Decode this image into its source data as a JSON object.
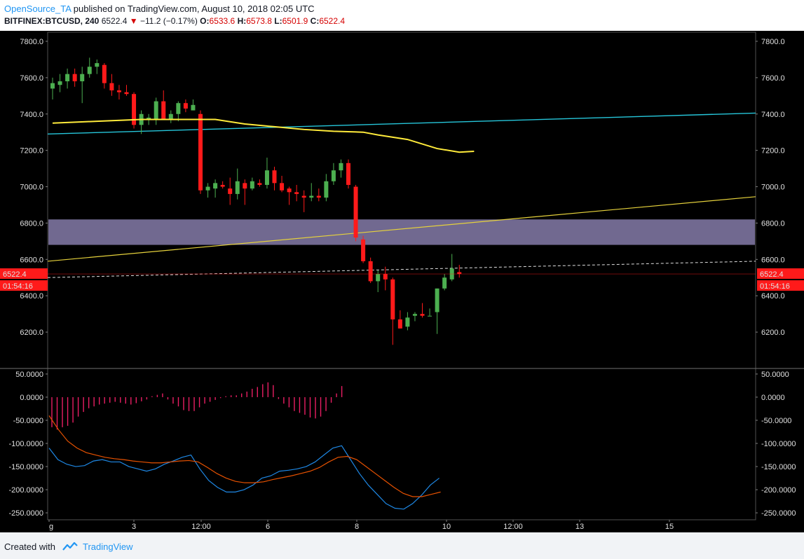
{
  "header": {
    "author": "OpenSource_TA",
    "published_text": "published on TradingView.com, August 10, 2018 02:05 UTC",
    "symbol": "BITFINEX:BTCUSD, 240",
    "last": "6522.4",
    "change": "−11.2 (−0.17%)",
    "open_label": "O:",
    "open": "6533.6",
    "high_label": "H:",
    "high": "6573.8",
    "low_label": "L:",
    "low": "6501.9",
    "close_label": "C:",
    "close": "6522.4"
  },
  "footer": {
    "created_with": "Created with",
    "brand": "TradingView"
  },
  "colors": {
    "up": "#4caf50",
    "down": "#ff1a1a",
    "ma": "#ffeb3b",
    "trend_cyan": "#26c6da",
    "trend_yellow": "#e6d23c",
    "zone": "#8a80b0",
    "macd_line": "#1e88e5",
    "signal_line": "#e65100",
    "hist": "#e91e63"
  },
  "chart_data": [
    {
      "type": "candlestick",
      "ylim": [
        6000,
        7850
      ],
      "y_ticks": [
        "6200.0",
        "6400.0",
        "6600.0",
        "6800.0",
        "7000.0",
        "7200.0",
        "7400.0",
        "7600.0",
        "7800.0"
      ],
      "x_ticks": [
        "g",
        "3",
        "12:00",
        "6",
        "8",
        "10",
        "12:00",
        "13",
        "15"
      ],
      "price_label": "6522.4",
      "countdown_label": "01:54:16",
      "resistance_zone": [
        6680,
        6820
      ],
      "candles": [
        [
          7540,
          7600,
          7480,
          7570
        ],
        [
          7560,
          7620,
          7520,
          7580
        ],
        [
          7580,
          7650,
          7540,
          7620
        ],
        [
          7620,
          7650,
          7550,
          7580
        ],
        [
          7580,
          7660,
          7460,
          7620
        ],
        [
          7620,
          7710,
          7600,
          7660
        ],
        [
          7660,
          7700,
          7620,
          7680
        ],
        [
          7670,
          7680,
          7540,
          7570
        ],
        [
          7570,
          7620,
          7500,
          7530
        ],
        [
          7530,
          7560,
          7480,
          7520
        ],
        [
          7520,
          7560,
          7500,
          7510
        ],
        [
          7510,
          7520,
          7320,
          7340
        ],
        [
          7340,
          7420,
          7290,
          7400
        ],
        [
          7370,
          7400,
          7340,
          7380
        ],
        [
          7370,
          7490,
          7340,
          7470
        ],
        [
          7470,
          7530,
          7380,
          7370
        ],
        [
          7370,
          7420,
          7350,
          7400
        ],
        [
          7400,
          7470,
          7360,
          7460
        ],
        [
          7460,
          7480,
          7410,
          7430
        ],
        [
          7420,
          7480,
          7420,
          7450
        ],
        [
          7400,
          7420,
          6960,
          6980
        ],
        [
          6980,
          7020,
          6940,
          7000
        ],
        [
          6990,
          7040,
          6940,
          7020
        ],
        [
          7010,
          7030,
          6990,
          7000
        ],
        [
          6990,
          7050,
          6900,
          6960
        ],
        [
          6960,
          7100,
          6930,
          7030
        ],
        [
          7020,
          7040,
          6900,
          6990
        ],
        [
          6990,
          7050,
          6980,
          7030
        ],
        [
          7020,
          7040,
          7000,
          7010
        ],
        [
          7010,
          7160,
          6990,
          7090
        ],
        [
          7090,
          7110,
          6980,
          7020
        ],
        [
          7020,
          7060,
          6970,
          6980
        ],
        [
          6990,
          7000,
          6900,
          6970
        ],
        [
          6970,
          7010,
          6920,
          6960
        ],
        [
          6950,
          6980,
          6860,
          6940
        ],
        [
          6940,
          7020,
          6920,
          6950
        ],
        [
          6950,
          6990,
          6920,
          6940
        ],
        [
          6940,
          7070,
          6920,
          7030
        ],
        [
          7030,
          7130,
          7010,
          7090
        ],
        [
          7090,
          7150,
          7050,
          7130
        ],
        [
          7130,
          7150,
          6990,
          7010
        ],
        [
          7000,
          7010,
          6700,
          6720
        ],
        [
          6710,
          6730,
          6580,
          6590
        ],
        [
          6590,
          6610,
          6470,
          6480
        ],
        [
          6480,
          6540,
          6420,
          6520
        ],
        [
          6520,
          6560,
          6430,
          6490
        ],
        [
          6490,
          6500,
          6130,
          6270
        ],
        [
          6270,
          6320,
          6220,
          6220
        ],
        [
          6230,
          6310,
          6210,
          6280
        ],
        [
          6290,
          6310,
          6260,
          6300
        ],
        [
          6300,
          6360,
          6280,
          6290
        ],
        [
          6290,
          6330,
          6290,
          6290
        ],
        [
          6310,
          6440,
          6190,
          6440
        ],
        [
          6440,
          6520,
          6430,
          6500
        ],
        [
          6490,
          6630,
          6480,
          6550
        ],
        [
          6530,
          6570,
          6500,
          6520
        ]
      ],
      "ma_line": [
        [
          0,
          7350
        ],
        [
          6,
          7360
        ],
        [
          12,
          7370
        ],
        [
          18,
          7370
        ],
        [
          22,
          7370
        ],
        [
          26,
          7345
        ],
        [
          30,
          7330
        ],
        [
          34,
          7315
        ],
        [
          38,
          7305
        ],
        [
          42,
          7300
        ],
        [
          44,
          7285
        ],
        [
          48,
          7260
        ],
        [
          52,
          7210
        ],
        [
          55,
          7190
        ],
        [
          57,
          7195
        ]
      ],
      "trend_cyan": [
        [
          0,
          7290
        ],
        [
          100,
          7405
        ]
      ],
      "trend_yellow": [
        [
          0,
          6590
        ],
        [
          100,
          6945
        ]
      ],
      "trend_dashed": [
        [
          0,
          6500
        ],
        [
          100,
          6590
        ]
      ]
    },
    {
      "type": "macd",
      "ylim": [
        -265,
        62
      ],
      "y_ticks": [
        "50.0000",
        "0.0000",
        "-50.0000",
        "-100.0000",
        "-150.0000",
        "-200.0000",
        "-250.0000"
      ],
      "histogram": [
        -65,
        -70,
        -65,
        -62,
        -55,
        -42,
        -32,
        -24,
        -20,
        -16,
        -14,
        -12,
        -10,
        -12,
        -14,
        -16,
        -13,
        -9,
        -5,
        2,
        5,
        8,
        -5,
        -14,
        -20,
        -28,
        -30,
        -30,
        -22,
        -14,
        -10,
        -6,
        -2,
        2,
        4,
        4,
        8,
        12,
        18,
        22,
        28,
        32,
        26,
        -4,
        -14,
        -22,
        -30,
        -34,
        -38,
        -44,
        -46,
        -42,
        -30,
        -12,
        8,
        24
      ],
      "macd_line": [
        -110,
        -135,
        -145,
        -150,
        -148,
        -138,
        -135,
        -140,
        -140,
        -150,
        -155,
        -160,
        -155,
        -145,
        -138,
        -130,
        -125,
        -155,
        -180,
        -195,
        -205,
        -205,
        -200,
        -190,
        -175,
        -170,
        -160,
        -158,
        -155,
        -150,
        -140,
        -125,
        -110,
        -105,
        -135,
        -165,
        -190,
        -210,
        -230,
        -240,
        -242,
        -230,
        -212,
        -190,
        -175
      ],
      "signal_line": [
        -40,
        -70,
        -95,
        -110,
        -120,
        -125,
        -130,
        -133,
        -135,
        -138,
        -140,
        -142,
        -142,
        -140,
        -138,
        -137,
        -140,
        -152,
        -165,
        -175,
        -182,
        -185,
        -185,
        -183,
        -178,
        -174,
        -170,
        -165,
        -160,
        -152,
        -140,
        -130,
        -128,
        -135,
        -150,
        -165,
        -180,
        -195,
        -208,
        -215,
        -215,
        -210,
        -205
      ]
    }
  ]
}
